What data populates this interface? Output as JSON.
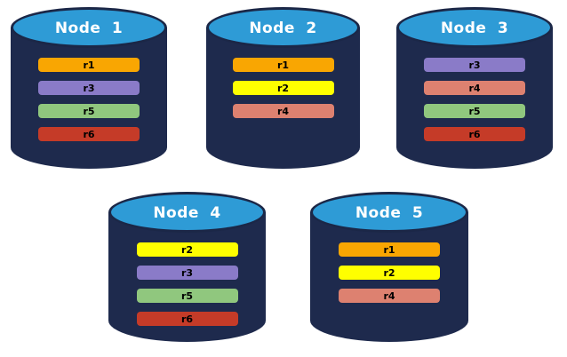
{
  "colors": {
    "background": "#ffffff",
    "cylinder_body": "#1e2a4d",
    "cylinder_top": "#2e9bd6",
    "cylinder_outline": "#1b2747",
    "node_label_text": "#ffffff",
    "bar_text": "#000000"
  },
  "replica_colors": {
    "r1": "#f9a602",
    "r2": "#ffff00",
    "r3": "#8a7bc8",
    "r4": "#dd8170",
    "r5": "#90c77e",
    "r6": "#c53b28"
  },
  "nodes": [
    {
      "label": "Node 1",
      "replicas": [
        "r1",
        "r3",
        "r5",
        "r6"
      ]
    },
    {
      "label": "Node 2",
      "replicas": [
        "r1",
        "r2",
        "r4"
      ]
    },
    {
      "label": "Node 3",
      "replicas": [
        "r3",
        "r4",
        "r5",
        "r6"
      ]
    },
    {
      "label": "Node 4",
      "replicas": [
        "r2",
        "r3",
        "r5",
        "r6"
      ]
    },
    {
      "label": "Node 5",
      "replicas": [
        "r1",
        "r2",
        "r4"
      ]
    }
  ]
}
